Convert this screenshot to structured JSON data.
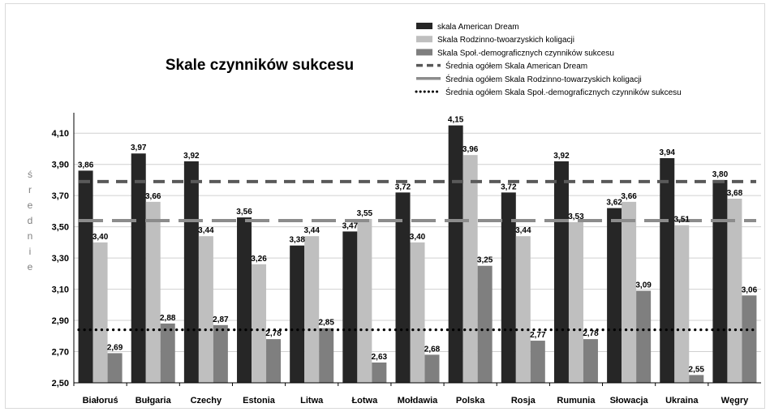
{
  "chart_data": {
    "type": "bar",
    "title": "Skale czynników sukcesu",
    "ylabel": "średnie",
    "xlabel": "",
    "ylim": [
      2.5,
      4.2
    ],
    "yticks": [
      "2,50",
      "2,70",
      "2,90",
      "3,10",
      "3,30",
      "3,50",
      "3,70",
      "3,90",
      "4,10"
    ],
    "ytick_values": [
      2.5,
      2.7,
      2.9,
      3.1,
      3.3,
      3.5,
      3.7,
      3.9,
      4.1
    ],
    "grid": true,
    "legend_position": "top-right",
    "categories": [
      "Białoruś",
      "Bułgaria",
      "Czechy",
      "Estonia",
      "Litwa",
      "Łotwa",
      "Mołdawia",
      "Polska",
      "Rosja",
      "Rumunia",
      "Słowacja",
      "Ukraina",
      "Węgry"
    ],
    "series": [
      {
        "name": "skala American Dream",
        "color": "#262626",
        "values": [
          3.86,
          3.97,
          3.92,
          3.56,
          3.38,
          3.47,
          3.72,
          4.15,
          3.72,
          3.92,
          3.62,
          3.94,
          3.8
        ],
        "labels": [
          "3,86",
          "3,97",
          "3,92",
          "3,56",
          "3,38",
          "3,47",
          "3,72",
          "4,15",
          "3,72",
          "3,92",
          "3,62",
          "3,94",
          "3,80"
        ]
      },
      {
        "name": "Skala Rodzinno-twoarzyskich koligacji",
        "color": "#bfbfbf",
        "values": [
          3.4,
          3.66,
          3.44,
          3.26,
          3.44,
          3.55,
          3.4,
          3.96,
          3.44,
          3.53,
          3.66,
          3.51,
          3.68
        ],
        "labels": [
          "3,40",
          "3,66",
          "3,44",
          "3,26",
          "3,44",
          "3,55",
          "3,40",
          "3,96",
          "3,44",
          "3,53",
          "3,66",
          "3,51",
          "3,68"
        ]
      },
      {
        "name": "Skala Społ.-demograficznych czynników sukcesu",
        "color": "#7f7f7f",
        "values": [
          2.69,
          2.88,
          2.87,
          2.78,
          2.85,
          2.63,
          2.68,
          3.25,
          2.77,
          2.78,
          3.09,
          2.55,
          3.06
        ],
        "labels": [
          "2,69",
          "2,88",
          "2,87",
          "2,78",
          "2,85",
          "2,63",
          "2,68",
          "3,25",
          "2,77",
          "2,78",
          "3,09",
          "2,55",
          "3,06"
        ]
      }
    ],
    "reference_lines": [
      {
        "name": "Średnia ogółem Skala American Dream",
        "value": 3.79,
        "color": "#595959",
        "style": "dashed"
      },
      {
        "name": "Średnia ogółem Skala Rodzinno-towarzyskich koligacji",
        "value": 3.54,
        "color": "#8c8c8c",
        "style": "long-dash"
      },
      {
        "name": "Średnia ogółem Skala Społ.-demograficznych czynników sukcesu",
        "value": 2.84,
        "color": "#000000",
        "style": "dotted"
      }
    ]
  }
}
